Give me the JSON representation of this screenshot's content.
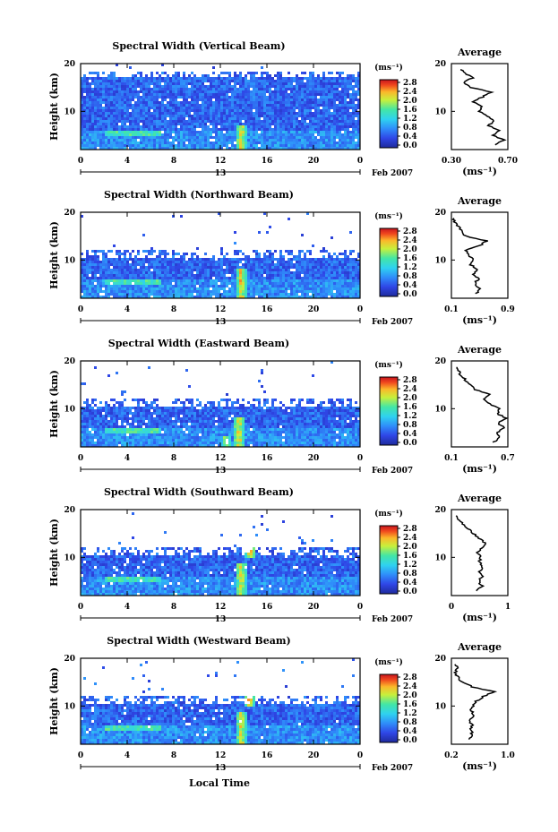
{
  "figure": {
    "x_label": "Local Time",
    "y_label": "Height (km)",
    "x_ticks": [
      "0",
      "4",
      "8",
      "12",
      "16",
      "20",
      "0"
    ],
    "y_ticks": [
      "20",
      "10"
    ],
    "date_day": "13",
    "date_text": "Feb 2007",
    "colorbar_unit": "(ms⁻¹)",
    "colorbar_ticks": [
      "2.8",
      "2.4",
      "2.0",
      "1.6",
      "1.2",
      "0.8",
      "0.4",
      "0.0"
    ],
    "avg_title": "Average",
    "avg_unit": "(ms⁻¹)"
  },
  "chart_data": [
    {
      "type": "heatmap",
      "title": "Spectral Width (Vertical Beam)",
      "xlabel": "Local Time",
      "ylabel": "Height (km)",
      "xlim": [
        0,
        24
      ],
      "ylim": [
        2,
        20
      ],
      "zlim": [
        0.0,
        3.0
      ],
      "zlabel": "(ms⁻¹)",
      "echo_top_km": 18.5,
      "features": [
        {
          "x": 13.8,
          "y_from": 2,
          "y_to": 7,
          "value": 2.8
        },
        {
          "x": 14.8,
          "y_from": 12,
          "y_to": 18,
          "value": 1.0
        }
      ],
      "avg_profile": {
        "xlim": [
          0.3,
          0.7
        ],
        "x_ticks": [
          "0.30",
          "0.70"
        ],
        "y": [
          3,
          4,
          5,
          6,
          7,
          8,
          9,
          10,
          11,
          12,
          13,
          14,
          15,
          16,
          17,
          18,
          19
        ],
        "x": [
          0.62,
          0.67,
          0.6,
          0.64,
          0.56,
          0.6,
          0.55,
          0.5,
          0.52,
          0.45,
          0.52,
          0.58,
          0.44,
          0.38,
          0.45,
          0.4,
          0.36
        ]
      }
    },
    {
      "type": "heatmap",
      "title": "Spectral Width (Northward Beam)",
      "xlabel": "Local Time",
      "ylabel": "Height (km)",
      "xlim": [
        0,
        24
      ],
      "ylim": [
        2,
        20
      ],
      "zlim": [
        0.0,
        3.0
      ],
      "zlabel": "(ms⁻¹)",
      "echo_top_km": 12,
      "features": [
        {
          "x": 13.8,
          "y_from": 2,
          "y_to": 8,
          "value": 2.8
        },
        {
          "x": 14.8,
          "y_from": 12,
          "y_to": 13,
          "value": 2.4
        }
      ],
      "avg_profile": {
        "xlim": [
          0.1,
          0.9
        ],
        "x_ticks": [
          "0.1",
          "0.9"
        ],
        "y": [
          3,
          4,
          5,
          6,
          7,
          8,
          9,
          10,
          11,
          12,
          13,
          14,
          15,
          16,
          17,
          18,
          19
        ],
        "x": [
          0.45,
          0.5,
          0.43,
          0.48,
          0.42,
          0.45,
          0.38,
          0.42,
          0.35,
          0.3,
          0.5,
          0.6,
          0.3,
          0.25,
          0.2,
          0.15,
          0.12
        ]
      }
    },
    {
      "type": "heatmap",
      "title": "Spectral Width (Eastward Beam)",
      "xlabel": "Local Time",
      "ylabel": "Height (km)",
      "xlim": [
        0,
        24
      ],
      "ylim": [
        2,
        20
      ],
      "zlim": [
        0.0,
        3.0
      ],
      "zlabel": "(ms⁻¹)",
      "echo_top_km": 12,
      "features": [
        {
          "x": 13.6,
          "y_from": 2,
          "y_to": 8,
          "value": 2.8
        },
        {
          "x": 12.5,
          "y_from": 2,
          "y_to": 4,
          "value": 2.4
        }
      ],
      "avg_profile": {
        "xlim": [
          0.1,
          0.7
        ],
        "x_ticks": [
          "0.1",
          "0.7"
        ],
        "y": [
          3,
          4,
          5,
          6,
          7,
          8,
          9,
          10,
          11,
          12,
          13,
          14,
          15,
          16,
          17,
          18,
          19
        ],
        "x": [
          0.55,
          0.62,
          0.58,
          0.66,
          0.6,
          0.68,
          0.58,
          0.62,
          0.5,
          0.45,
          0.52,
          0.35,
          0.3,
          0.25,
          0.2,
          0.18,
          0.15
        ]
      }
    },
    {
      "type": "heatmap",
      "title": "Spectral Width (Southward Beam)",
      "xlabel": "Local Time",
      "ylabel": "Height (km)",
      "xlim": [
        0,
        24
      ],
      "ylim": [
        2,
        20
      ],
      "zlim": [
        0.0,
        3.0
      ],
      "zlabel": "(ms⁻¹)",
      "echo_top_km": 12,
      "features": [
        {
          "x": 13.8,
          "y_from": 2,
          "y_to": 9,
          "value": 2.8
        },
        {
          "x": 14.6,
          "y_from": 10,
          "y_to": 14,
          "value": 2.8
        }
      ],
      "avg_profile": {
        "xlim": [
          0,
          1
        ],
        "x_ticks": [
          "0",
          "1"
        ],
        "y": [
          3,
          4,
          5,
          6,
          7,
          8,
          9,
          10,
          11,
          12,
          13,
          14,
          15,
          16,
          17,
          18,
          19
        ],
        "x": [
          0.45,
          0.55,
          0.48,
          0.56,
          0.5,
          0.55,
          0.5,
          0.52,
          0.45,
          0.55,
          0.6,
          0.5,
          0.38,
          0.3,
          0.2,
          0.12,
          0.05
        ]
      }
    },
    {
      "type": "heatmap",
      "title": "Spectral Width (Westward Beam)",
      "xlabel": "Local Time",
      "ylabel": "Height (km)",
      "xlim": [
        0,
        24
      ],
      "ylim": [
        2,
        20
      ],
      "zlim": [
        0.0,
        3.0
      ],
      "zlabel": "(ms⁻¹)",
      "echo_top_km": 12,
      "features": [
        {
          "x": 13.8,
          "y_from": 2,
          "y_to": 9,
          "value": 2.8
        },
        {
          "x": 14.5,
          "y_from": 10,
          "y_to": 13,
          "value": 2.8
        }
      ],
      "avg_profile": {
        "xlim": [
          0.2,
          1.0
        ],
        "x_ticks": [
          "0.2",
          "1.0"
        ],
        "y": [
          3,
          4,
          5,
          6,
          7,
          8,
          9,
          10,
          11,
          12,
          13,
          14,
          15,
          16,
          17,
          18,
          19
        ],
        "x": [
          0.45,
          0.5,
          0.47,
          0.5,
          0.45,
          0.52,
          0.48,
          0.5,
          0.55,
          0.65,
          0.8,
          0.5,
          0.35,
          0.3,
          0.25,
          0.3,
          0.22
        ]
      }
    }
  ]
}
